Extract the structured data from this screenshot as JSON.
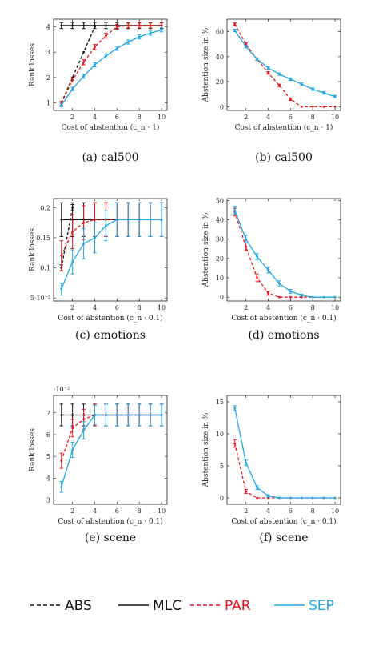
{
  "figure": {
    "legend": [
      {
        "name": "ABS",
        "color": "#111111",
        "dash": "dashed"
      },
      {
        "name": "MLC",
        "color": "#111111",
        "dash": "solid"
      },
      {
        "name": "PAR",
        "color": "#e8141a",
        "dash": "dashed"
      },
      {
        "name": "SEP",
        "color": "#1ea8e6",
        "dash": "solid"
      }
    ]
  },
  "chart_data": [
    {
      "id": "a",
      "type": "line",
      "caption": "(a) cal500",
      "xlabel": "Cost of abstention (c_n · 1)",
      "ylabel": "Rank losses",
      "xlim": [
        0.3,
        10.5
      ],
      "ylim": [
        0.7,
        4.3
      ],
      "xticks": [
        2,
        4,
        6,
        8,
        10
      ],
      "yticks": [
        1,
        2,
        3,
        4
      ],
      "exponent": "",
      "series": [
        {
          "name": "ABS",
          "x": [
            1,
            2,
            3,
            4
          ],
          "y": [
            1.0,
            2.0,
            3.0,
            4.0
          ],
          "err": [
            0,
            0,
            0,
            0
          ]
        },
        {
          "name": "MLC",
          "x": [
            1,
            2,
            3,
            4,
            5,
            6,
            7,
            8,
            9,
            10
          ],
          "y": [
            4.05,
            4.05,
            4.05,
            4.05,
            4.05,
            4.05,
            4.05,
            4.05,
            4.05,
            4.05
          ],
          "err": [
            0.12,
            0.12,
            0.12,
            0.12,
            0.12,
            0.12,
            0.12,
            0.12,
            0.12,
            0.12
          ]
        },
        {
          "name": "PAR",
          "x": [
            1,
            2,
            3,
            4,
            5,
            6,
            7,
            8,
            9,
            10
          ],
          "y": [
            0.98,
            1.9,
            2.6,
            3.2,
            3.65,
            4.0,
            4.05,
            4.05,
            4.05,
            4.05
          ],
          "err": [
            0.08,
            0.08,
            0.1,
            0.1,
            0.1,
            0.1,
            0.1,
            0.1,
            0.1,
            0.1
          ]
        },
        {
          "name": "SEP",
          "x": [
            1,
            2,
            3,
            4,
            5,
            6,
            7,
            8,
            9,
            10
          ],
          "y": [
            0.9,
            1.55,
            2.05,
            2.5,
            2.85,
            3.15,
            3.4,
            3.6,
            3.75,
            3.88
          ],
          "err": [
            0.06,
            0.07,
            0.08,
            0.08,
            0.08,
            0.08,
            0.08,
            0.08,
            0.08,
            0.08
          ]
        }
      ]
    },
    {
      "id": "b",
      "type": "line",
      "caption": "(b) cal500",
      "xlabel": "Cost of abstention (c_n · 1)",
      "ylabel": "Abstention size in %",
      "xlim": [
        0.3,
        10.5
      ],
      "ylim": [
        -3,
        70
      ],
      "xticks": [
        2,
        4,
        6,
        8,
        10
      ],
      "yticks": [
        0,
        20,
        40,
        60
      ],
      "exponent": "",
      "series": [
        {
          "name": "PAR",
          "x": [
            1,
            2,
            3,
            4,
            5,
            6,
            7,
            8,
            9,
            10
          ],
          "y": [
            66,
            50,
            38,
            27,
            17,
            6,
            0,
            0,
            0,
            0
          ],
          "err": [
            1,
            1,
            1,
            1,
            1,
            1,
            0,
            0,
            0,
            0
          ]
        },
        {
          "name": "SEP",
          "x": [
            1,
            2,
            3,
            4,
            5,
            6,
            7,
            8,
            9,
            10
          ],
          "y": [
            61,
            48,
            38,
            31,
            26,
            22,
            18,
            14,
            11,
            8
          ],
          "err": [
            1,
            1,
            1,
            1,
            1,
            1,
            1,
            1,
            1,
            1
          ]
        }
      ]
    },
    {
      "id": "c",
      "type": "line",
      "caption": "(c) emotions",
      "xlabel": "Cost of abstention (c_n · 0.1)",
      "ylabel": "Rank losses",
      "xlim": [
        0.3,
        10.5
      ],
      "ylim": [
        0.045,
        0.215
      ],
      "xticks": [
        2,
        4,
        6,
        8,
        10
      ],
      "yticks": [
        0.05,
        0.1,
        0.15,
        0.2
      ],
      "yticklabels": [
        "5·10⁻²",
        "0.1",
        "0.15",
        "0.2"
      ],
      "exponent": "",
      "series": [
        {
          "name": "ABS",
          "x": [
            1,
            2
          ],
          "y": [
            0.1,
            0.2
          ],
          "err": [
            0.005,
            0.005
          ]
        },
        {
          "name": "MLC",
          "x": [
            1,
            2,
            3,
            4,
            5,
            6,
            7,
            8,
            9,
            10
          ],
          "y": [
            0.18,
            0.18,
            0.18,
            0.18,
            0.18,
            0.18,
            0.18,
            0.18,
            0.18,
            0.18
          ],
          "err": [
            0.028,
            0.028,
            0.028,
            0.028,
            0.028,
            0.028,
            0.028,
            0.028,
            0.028,
            0.028
          ]
        },
        {
          "name": "PAR",
          "x": [
            1,
            2,
            3,
            4,
            5,
            6,
            7,
            8,
            9,
            10
          ],
          "y": [
            0.12,
            0.16,
            0.175,
            0.18,
            0.18,
            0.18,
            0.18,
            0.18,
            0.18,
            0.18
          ],
          "err": [
            0.025,
            0.028,
            0.028,
            0.028,
            0.028,
            0.028,
            0.028,
            0.028,
            0.028,
            0.028
          ]
        },
        {
          "name": "SEP",
          "x": [
            1,
            2,
            3,
            4,
            5,
            6,
            7,
            8,
            9,
            10
          ],
          "y": [
            0.065,
            0.11,
            0.14,
            0.15,
            0.17,
            0.18,
            0.18,
            0.18,
            0.18,
            0.18
          ],
          "err": [
            0.01,
            0.02,
            0.025,
            0.025,
            0.025,
            0.028,
            0.028,
            0.028,
            0.028,
            0.028
          ]
        }
      ]
    },
    {
      "id": "d",
      "type": "line",
      "caption": "(d) emotions",
      "xlabel": "Cost of abstention (c_n · 0.1)",
      "ylabel": "Abstention size in %",
      "xlim": [
        0.3,
        10.5
      ],
      "ylim": [
        -2,
        51
      ],
      "xticks": [
        2,
        4,
        6,
        8,
        10
      ],
      "yticks": [
        0,
        10,
        20,
        30,
        40,
        50
      ],
      "exponent": "",
      "series": [
        {
          "name": "PAR",
          "x": [
            1,
            2,
            3,
            4,
            5,
            6,
            7,
            8,
            9,
            10
          ],
          "y": [
            44,
            26,
            10,
            2,
            0,
            0,
            0,
            0,
            0,
            0
          ],
          "err": [
            2,
            2,
            2,
            1,
            0,
            0,
            0,
            0,
            0,
            0
          ]
        },
        {
          "name": "SEP",
          "x": [
            1,
            2,
            3,
            4,
            5,
            6,
            7,
            8,
            9,
            10
          ],
          "y": [
            45,
            30,
            21,
            14,
            7,
            3,
            1,
            0,
            0,
            0
          ],
          "err": [
            2,
            2,
            1.5,
            1.5,
            1.5,
            1,
            0.5,
            0,
            0,
            0
          ]
        }
      ]
    },
    {
      "id": "e",
      "type": "line",
      "caption": "(e) scene",
      "xlabel": "Cost of abstention (c_n · 0.1)",
      "ylabel": "Rank losses",
      "xlim": [
        0.3,
        10.5
      ],
      "ylim": [
        2.8,
        7.8
      ],
      "xticks": [
        2,
        4,
        6,
        8,
        10
      ],
      "yticks": [
        3,
        4,
        5,
        6,
        7
      ],
      "exponent": "·10⁻²",
      "series": [
        {
          "name": "MLC",
          "x": [
            1,
            2,
            3,
            4,
            5,
            6,
            7,
            8,
            9,
            10
          ],
          "y": [
            6.9,
            6.9,
            6.9,
            6.9,
            6.9,
            6.9,
            6.9,
            6.9,
            6.9,
            6.9
          ],
          "err": [
            0.5,
            0.5,
            0.5,
            0.5,
            0.5,
            0.5,
            0.5,
            0.5,
            0.5,
            0.5
          ]
        },
        {
          "name": "PAR",
          "x": [
            1,
            2,
            3,
            4,
            5,
            6,
            7,
            8,
            9,
            10
          ],
          "y": [
            4.8,
            6.3,
            6.7,
            6.9,
            6.9,
            6.9,
            6.9,
            6.9,
            6.9,
            6.9
          ],
          "err": [
            0.35,
            0.4,
            0.45,
            0.5,
            0.5,
            0.5,
            0.5,
            0.5,
            0.5,
            0.5
          ]
        },
        {
          "name": "SEP",
          "x": [
            1,
            2,
            3,
            4,
            5,
            6,
            7,
            8,
            9,
            10
          ],
          "y": [
            3.6,
            5.3,
            6.2,
            6.9,
            6.9,
            6.9,
            6.9,
            6.9,
            6.9,
            6.9
          ],
          "err": [
            0.25,
            0.35,
            0.4,
            0.45,
            0.5,
            0.5,
            0.5,
            0.5,
            0.5,
            0.5
          ]
        }
      ]
    },
    {
      "id": "f",
      "type": "line",
      "caption": "(f) scene",
      "xlabel": "Cost of abstention (c_n · 0.1)",
      "ylabel": "Abstention size in %",
      "xlim": [
        0.3,
        10.5
      ],
      "ylim": [
        -1,
        16
      ],
      "xticks": [
        2,
        4,
        6,
        8,
        10
      ],
      "yticks": [
        0,
        5,
        10,
        15
      ],
      "exponent": "",
      "series": [
        {
          "name": "PAR",
          "x": [
            1,
            2,
            3,
            4,
            5,
            6,
            7,
            8,
            9,
            10
          ],
          "y": [
            8.5,
            1.0,
            0,
            0,
            0,
            0,
            0,
            0,
            0,
            0
          ],
          "err": [
            0.6,
            0.3,
            0,
            0,
            0,
            0,
            0,
            0,
            0,
            0
          ]
        },
        {
          "name": "SEP",
          "x": [
            1,
            2,
            3,
            4,
            5,
            6,
            7,
            8,
            9,
            10
          ],
          "y": [
            14,
            5.5,
            1.6,
            0.3,
            0,
            0,
            0,
            0,
            0,
            0
          ],
          "err": [
            0.4,
            0.4,
            0.3,
            0.2,
            0,
            0,
            0,
            0,
            0,
            0
          ]
        }
      ]
    }
  ]
}
